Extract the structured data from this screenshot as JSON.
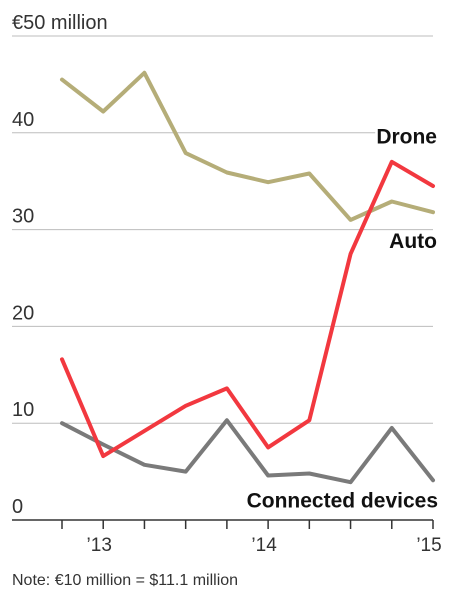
{
  "chart_data": {
    "type": "line",
    "title": "",
    "xlabel": "",
    "ylabel": "",
    "y_unit_label": "€50 million",
    "ylim": [
      0,
      50
    ],
    "y_ticks": [
      {
        "value": 0,
        "label": "0"
      },
      {
        "value": 10,
        "label": "10"
      },
      {
        "value": 20,
        "label": "20"
      },
      {
        "value": 30,
        "label": "30"
      },
      {
        "value": 40,
        "label": "40"
      },
      {
        "value": 50,
        "label": "€50 million"
      }
    ],
    "x_ticks": [
      {
        "value": 2013,
        "label": "’13"
      },
      {
        "value": 2014,
        "label": "’14"
      },
      {
        "value": 2015,
        "label": "’15"
      }
    ],
    "x_quarter_ticks": [
      2012.75,
      2013.0,
      2013.25,
      2013.5,
      2013.75,
      2014.0,
      2014.25,
      2014.5,
      2014.75,
      2015.0
    ],
    "xlim": [
      2012.75,
      2015.0
    ],
    "x": [
      "Q4 2012",
      "Q1 2013",
      "Q2 2013",
      "Q3 2013",
      "Q4 2013",
      "Q1 2014",
      "Q2 2014",
      "Q3 2014",
      "Q4 2014",
      "Q1 2015"
    ],
    "x_values": [
      2012.75,
      2013.0,
      2013.25,
      2013.5,
      2013.75,
      2014.0,
      2014.25,
      2014.5,
      2014.75,
      2015.0
    ],
    "series": [
      {
        "name": "Auto",
        "color": "#b5ad78",
        "values": [
          45.5,
          42.2,
          46.2,
          37.9,
          35.9,
          34.9,
          35.8,
          31.0,
          32.9,
          31.8
        ]
      },
      {
        "name": "Drone",
        "color": "#f2383f",
        "values": [
          16.6,
          6.6,
          9.2,
          11.8,
          13.6,
          7.5,
          10.3,
          27.5,
          37.0,
          34.5
        ]
      },
      {
        "name": "Connected devices",
        "color": "#7a7a7a",
        "values": [
          10.0,
          7.8,
          5.7,
          5.0,
          10.3,
          4.6,
          4.8,
          3.9,
          9.5,
          4.1
        ]
      }
    ],
    "grid": true,
    "legend": "inline labels",
    "note": "Note: €10 million = $11.1 million"
  }
}
